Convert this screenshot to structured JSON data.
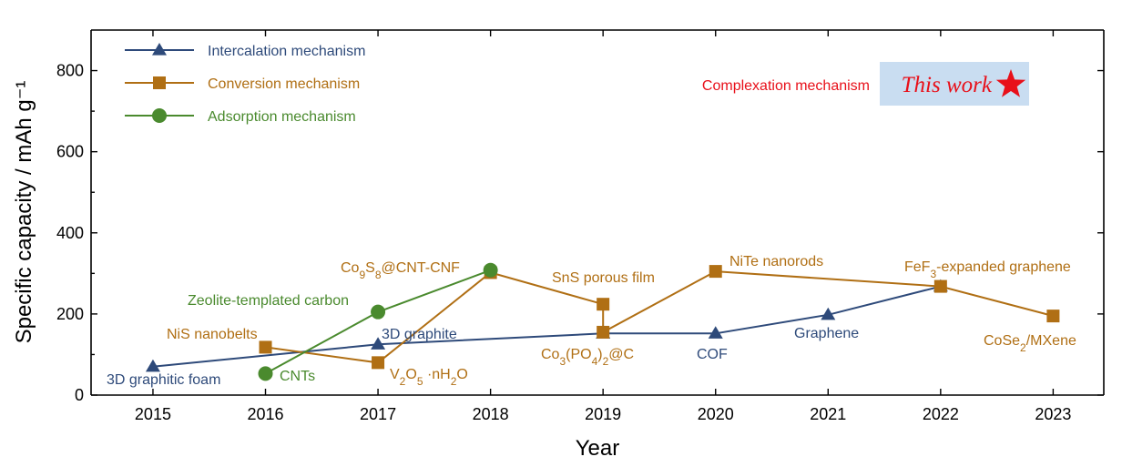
{
  "chart_data": {
    "type": "line",
    "title": "",
    "xlabel": "Year",
    "ylabel": "Specific capacity / mAh g⁻¹",
    "xlim": [
      2014.45,
      2023.45
    ],
    "ylim": [
      0,
      900
    ],
    "xticks": [
      "2015",
      "2016",
      "2017",
      "2018",
      "2019",
      "2020",
      "2021",
      "2022",
      "2023"
    ],
    "yticks": [
      "0",
      "200",
      "400",
      "600",
      "800"
    ],
    "grid": false,
    "legend_position": "top-left",
    "colors": {
      "intercalation": "#2E4A7A",
      "conversion": "#B06F14",
      "adsorption": "#4A8A2E",
      "complexation": "#E8101A",
      "highlight_box": "#C9DDF1"
    },
    "series": [
      {
        "key": "intercalation",
        "name": "Intercalation mechanism",
        "marker": "triangle",
        "points": [
          {
            "x": 2015,
            "y": 70
          },
          {
            "x": 2017,
            "y": 125
          },
          {
            "x": 2019,
            "y": 152
          },
          {
            "x": 2020,
            "y": 152
          },
          {
            "x": 2021,
            "y": 198
          },
          {
            "x": 2022,
            "y": 268
          }
        ]
      },
      {
        "key": "conversion",
        "name": "Conversion mechanism",
        "marker": "square",
        "points": [
          {
            "x": 2016,
            "y": 118
          },
          {
            "x": 2017,
            "y": 80
          },
          {
            "x": 2018,
            "y": 302
          },
          {
            "x": 2019,
            "y": 224
          },
          {
            "x": 2019,
            "y": 155
          },
          {
            "x": 2020,
            "y": 305
          },
          {
            "x": 2022,
            "y": 268
          },
          {
            "x": 2023,
            "y": 195
          }
        ]
      },
      {
        "key": "adsorption",
        "name": "Adsorption mechanism",
        "marker": "circle",
        "points": [
          {
            "x": 2016,
            "y": 53
          },
          {
            "x": 2017,
            "y": 205
          },
          {
            "x": 2018,
            "y": 308
          }
        ]
      }
    ],
    "complexation_label": "Complexation mechanism",
    "this_work_label": "This work",
    "annotations": [
      {
        "key": "a_3dfoam",
        "text": "3D graphitic foam",
        "color": "intercalation"
      },
      {
        "key": "a_3dgraphite",
        "text": "3D graphite",
        "color": "intercalation"
      },
      {
        "key": "a_cof",
        "text": "COF",
        "color": "intercalation"
      },
      {
        "key": "a_graphene",
        "text": "Graphene",
        "color": "intercalation"
      },
      {
        "key": "a_nis",
        "text": "NiS nanobelts",
        "color": "conversion"
      },
      {
        "key": "a_v2o5",
        "text": "V2O5 ·nH2O",
        "color": "conversion"
      },
      {
        "key": "a_co9s8",
        "text": "Co9S8@CNT-CNF",
        "color": "conversion"
      },
      {
        "key": "a_sns",
        "text": "SnS porous film",
        "color": "conversion"
      },
      {
        "key": "a_co3po4",
        "text": "Co3(PO4)2@C",
        "color": "conversion"
      },
      {
        "key": "a_nite",
        "text": "NiTe nanorods",
        "color": "conversion"
      },
      {
        "key": "a_fef3",
        "text": "FeF3-expanded graphene",
        "color": "conversion"
      },
      {
        "key": "a_cose2",
        "text": "CoSe2/MXene",
        "color": "conversion"
      },
      {
        "key": "a_zeolite",
        "text": "Zeolite-templated carbon",
        "color": "adsorption"
      },
      {
        "key": "a_cnts",
        "text": "CNTs",
        "color": "adsorption"
      }
    ]
  }
}
